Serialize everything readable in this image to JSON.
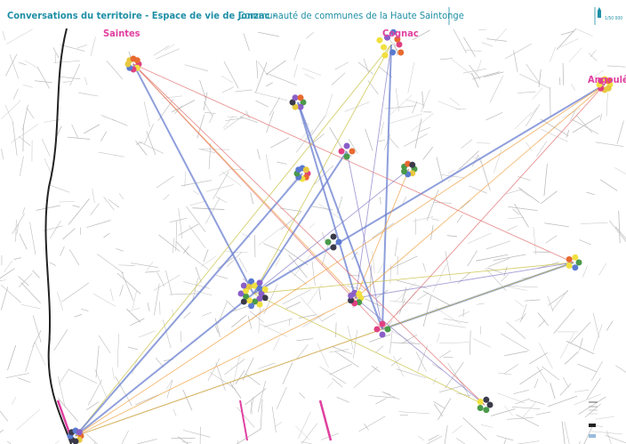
{
  "header": {
    "title": "Conversations du territoire - Espace de vie de Jonzac -",
    "subtitle": "Communauté de communes de la Haute Saintonge",
    "scale": "1/50 000"
  },
  "map": {
    "cities": [
      "Saintes",
      "Cognac",
      "Angoulême"
    ]
  }
}
